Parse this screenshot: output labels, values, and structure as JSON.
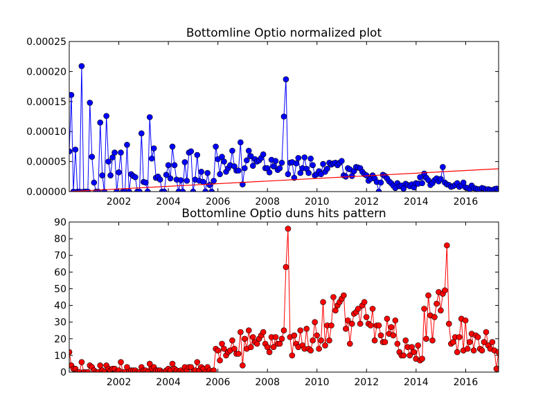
{
  "charts": [
    {
      "type": "scatter",
      "title": "Bottomline Optio normalized plot",
      "xlim": [
        2000.0,
        2017.33
      ],
      "ylim": [
        0,
        0.00025
      ],
      "xticks": [
        "2002",
        "2004",
        "2006",
        "2008",
        "2010",
        "2012",
        "2014",
        "2016"
      ],
      "xtick_values": [
        2002,
        2004,
        2006,
        2008,
        2010,
        2012,
        2014,
        2016
      ],
      "yticks": [
        "0.00000",
        "0.00005",
        "0.00010",
        "0.00015",
        "0.00020",
        "0.00025"
      ],
      "ytick_values": [
        0,
        5e-05,
        0.0001,
        0.00015,
        0.0002,
        0.00025
      ],
      "color": "#0000ff",
      "trend_color": "#ff0000",
      "trend": [
        [
          2000.0,
          0.0
        ],
        [
          2017.33,
          3.8e-05
        ]
      ],
      "start_year": 2000.0,
      "step": 0.0833,
      "values": [
        6.7e-05,
        0.000161,
        0.0,
        7e-05,
        0.0,
        0.0,
        0.000209,
        0.0,
        0.0,
        0.0,
        0.000148,
        5.8e-05,
        1.5e-05,
        0.0,
        0.0,
        0.000115,
        2.7e-05,
        0.0,
        0.000126,
        5e-05,
        2.7e-05,
        5.7e-05,
        6.5e-05,
        0.0,
        3.2e-05,
        6.5e-05,
        0.0,
        0.0,
        7.8e-05,
        0.0,
        2.9e-05,
        2.6e-05,
        2.4e-05,
        0.0,
        0.0,
        9.7e-05,
        1.6e-05,
        1.5e-05,
        0.0,
        0.000124,
        5.5e-05,
        7.2e-05,
        2.3e-05,
        2.5e-05,
        2e-05,
        0.0,
        0.0,
        2.8e-05,
        4.4e-05,
        2.2e-05,
        7.5e-05,
        4.4e-05,
        2e-05,
        0.0,
        1.9e-05,
        0.0,
        4.9e-05,
        1.8e-05,
        6.5e-05,
        6.7e-05,
        0.0,
        2e-05,
        6.1e-05,
        1.8e-05,
        3.3e-05,
        1.6e-05,
        0.0,
        3.1e-05,
        1.1e-05,
        0.0,
        1.8e-05,
        7.5e-05,
        5.4e-05,
        2.9e-05,
        5.8e-05,
        5e-05,
        3.3e-05,
        3.9e-05,
        4.4e-05,
        6.8e-05,
        4.2e-05,
        3.5e-05,
        3.5e-05,
        8.2e-05,
        1.2e-05,
        3.9e-05,
        5.2e-05,
        6.8e-05,
        5.9e-05,
        4.3e-05,
        5.4e-05,
        5e-05,
        5.2e-05,
        5.6e-05,
        6.2e-05,
        3.9e-05,
        3.9e-05,
        3.2e-05,
        5.3e-05,
        4.2e-05,
        5.1e-05,
        3.6e-05,
        3.9e-05,
        4.8e-05,
        0.000125,
        0.000187,
        2.9e-05,
        4.8e-05,
        4.9e-05,
        2.3e-05,
        4.7e-05,
        5.6e-05,
        3.1e-05,
        3.9e-05,
        5.7e-05,
        3.8e-05,
        3.1e-05,
        5.5e-05,
        4.4e-05,
        2.7e-05,
        2.9e-05,
        3.4e-05,
        2.9e-05,
        4.6e-05,
        3.3e-05,
        3.8e-05,
        4.8e-05,
        4.5e-05,
        4.7e-05,
        4.8e-05,
        4.4e-05,
        4.8e-05,
        5.1e-05,
        2.7e-05,
        2.5e-05,
        3.9e-05,
        3.7e-05,
        2.6e-05,
        3.4e-05,
        4.1e-05,
        4e-05,
        3.9e-05,
        3.3e-05,
        2.9e-05,
        2.7e-05,
        1.8e-05,
        2.1e-05,
        2.7e-05,
        2.2e-05,
        1.6e-05,
        0.0,
        1.5e-05,
        2.8e-05,
        2.6e-05,
        2.2e-05,
        1.7e-05,
        1.4e-05,
        1e-05,
        6e-06,
        1.4e-05,
        9e-06,
        1e-05,
        5e-06,
        1.3e-05,
        1.1e-05,
        9e-06,
        1.2e-05,
        7e-06,
        1.4e-05,
        1.3e-05,
        2.4e-05,
        1.4e-05,
        3e-05,
        2.3e-05,
        1.9e-05,
        1.1e-05,
        1.4e-05,
        1.9e-05,
        2.2e-05,
        1.7e-05,
        2.1e-05,
        4.1e-05,
        1.5e-05,
        1.2e-05,
        1.1e-05,
        8e-06,
        9e-06,
        1.1e-05,
        1.4e-05,
        8e-06,
        1e-05,
        1.5e-05,
        7e-06,
        6e-06,
        4e-06,
        1e-05,
        6e-06,
        5e-06,
        4e-06,
        4e-06,
        6e-06,
        5e-06,
        3e-06,
        4e-06,
        3e-06,
        2e-06,
        4e-06,
        5e-06,
        3e-06,
        4e-06,
        5e-06,
        1.1e-05,
        1e-05,
        9e-06,
        4e-06
      ]
    },
    {
      "type": "scatter",
      "title": "Bottomline Optio duns hits pattern",
      "xlim": [
        2000.0,
        2017.33
      ],
      "ylim": [
        0,
        90
      ],
      "xticks": [
        "2002",
        "2004",
        "2006",
        "2008",
        "2010",
        "2012",
        "2014",
        "2016"
      ],
      "xtick_values": [
        2002,
        2004,
        2006,
        2008,
        2010,
        2012,
        2014,
        2016
      ],
      "yticks": [
        "0",
        "10",
        "20",
        "30",
        "40",
        "50",
        "60",
        "70",
        "80",
        "90"
      ],
      "ytick_values": [
        0,
        10,
        20,
        30,
        40,
        50,
        60,
        70,
        80,
        90
      ],
      "color": "#ff0000",
      "start_year": 2000.0,
      "step": 0.0833,
      "values": [
        12,
        4,
        2,
        2,
        0,
        0,
        6,
        0,
        0,
        0,
        4,
        3,
        1,
        0,
        0,
        4,
        1,
        0,
        4,
        2,
        1,
        2,
        2,
        0,
        1,
        6,
        0,
        0,
        3,
        0,
        1,
        1,
        1,
        0,
        0,
        3,
        1,
        1,
        0,
        5,
        2,
        3,
        1,
        1,
        1,
        0,
        0,
        1,
        2,
        1,
        5,
        2,
        1,
        0,
        1,
        0,
        3,
        1,
        3,
        3,
        0,
        1,
        6,
        1,
        3,
        2,
        0,
        3,
        1,
        0,
        1,
        14,
        13,
        7,
        17,
        14,
        10,
        12,
        13,
        19,
        14,
        11,
        11,
        24,
        4,
        20,
        14,
        25,
        15,
        21,
        18,
        17,
        20,
        22,
        24,
        17,
        15,
        12,
        21,
        15,
        21,
        17,
        17,
        20,
        25,
        63,
        86,
        21,
        10,
        22,
        17,
        15,
        25,
        16,
        14,
        26,
        14,
        13,
        19,
        30,
        22,
        14,
        19,
        42,
        16,
        28,
        19,
        28,
        45,
        37,
        40,
        42,
        44,
        46,
        26,
        31,
        17,
        29,
        35,
        36,
        38,
        29,
        40,
        42,
        33,
        29,
        28,
        38,
        19,
        28,
        28,
        22,
        18,
        18,
        32,
        23,
        27,
        22,
        31,
        17,
        12,
        10,
        10,
        19,
        15,
        10,
        15,
        12,
        8,
        16,
        7,
        8,
        38,
        20,
        46,
        34,
        19,
        33,
        41,
        48,
        37,
        47,
        49,
        76,
        29,
        17,
        18,
        21,
        12,
        21,
        32,
        13,
        31,
        14,
        18,
        23,
        13,
        22,
        21,
        14,
        13,
        18,
        24,
        16,
        14,
        18,
        13,
        2,
        12,
        3,
        6,
        21,
        43,
        21,
        3,
        9
      ]
    }
  ]
}
